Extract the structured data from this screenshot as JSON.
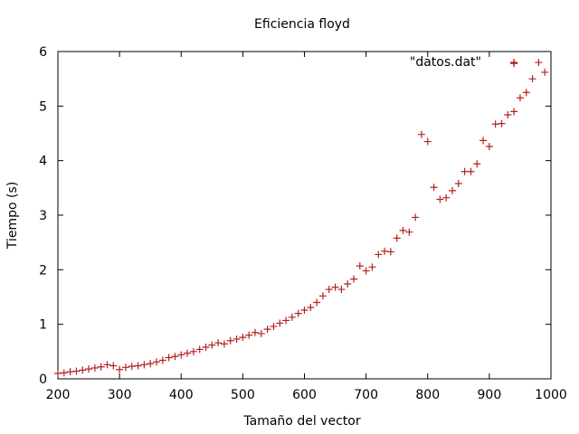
{
  "chart_data": {
    "type": "scatter",
    "title": "Eficiencia floyd",
    "xlabel": "Tamaño del vector",
    "ylabel": "Tiempo (s)",
    "xlim": [
      200,
      1000
    ],
    "ylim": [
      0,
      6
    ],
    "xticks": [
      200,
      300,
      400,
      500,
      600,
      700,
      800,
      900,
      1000
    ],
    "yticks": [
      0,
      1,
      2,
      3,
      4,
      5,
      6
    ],
    "grid": false,
    "legend_position": "top-right",
    "marker": "+",
    "series": [
      {
        "name": "\"datos.dat\"",
        "color": "#b22222",
        "points": [
          [
            200,
            0.1
          ],
          [
            210,
            0.11
          ],
          [
            220,
            0.13
          ],
          [
            230,
            0.14
          ],
          [
            240,
            0.16
          ],
          [
            250,
            0.18
          ],
          [
            260,
            0.2
          ],
          [
            270,
            0.22
          ],
          [
            280,
            0.26
          ],
          [
            290,
            0.24
          ],
          [
            300,
            0.17
          ],
          [
            310,
            0.21
          ],
          [
            320,
            0.23
          ],
          [
            330,
            0.24
          ],
          [
            340,
            0.26
          ],
          [
            350,
            0.28
          ],
          [
            360,
            0.31
          ],
          [
            370,
            0.34
          ],
          [
            380,
            0.39
          ],
          [
            390,
            0.41
          ],
          [
            400,
            0.44
          ],
          [
            410,
            0.47
          ],
          [
            420,
            0.5
          ],
          [
            430,
            0.54
          ],
          [
            440,
            0.58
          ],
          [
            450,
            0.62
          ],
          [
            460,
            0.66
          ],
          [
            470,
            0.64
          ],
          [
            480,
            0.7
          ],
          [
            490,
            0.73
          ],
          [
            500,
            0.76
          ],
          [
            510,
            0.8
          ],
          [
            520,
            0.85
          ],
          [
            530,
            0.83
          ],
          [
            540,
            0.91
          ],
          [
            550,
            0.96
          ],
          [
            560,
            1.02
          ],
          [
            570,
            1.07
          ],
          [
            580,
            1.13
          ],
          [
            590,
            1.2
          ],
          [
            600,
            1.26
          ],
          [
            610,
            1.31
          ],
          [
            620,
            1.4
          ],
          [
            630,
            1.52
          ],
          [
            640,
            1.64
          ],
          [
            650,
            1.68
          ],
          [
            660,
            1.64
          ],
          [
            670,
            1.74
          ],
          [
            680,
            1.83
          ],
          [
            690,
            2.07
          ],
          [
            700,
            1.98
          ],
          [
            710,
            2.05
          ],
          [
            720,
            2.28
          ],
          [
            730,
            2.34
          ],
          [
            740,
            2.33
          ],
          [
            750,
            2.58
          ],
          [
            760,
            2.72
          ],
          [
            770,
            2.69
          ],
          [
            780,
            2.96
          ],
          [
            790,
            4.48
          ],
          [
            800,
            4.35
          ],
          [
            810,
            3.51
          ],
          [
            820,
            3.29
          ],
          [
            830,
            3.32
          ],
          [
            840,
            3.45
          ],
          [
            850,
            3.58
          ],
          [
            860,
            3.8
          ],
          [
            870,
            3.8
          ],
          [
            880,
            3.94
          ],
          [
            890,
            4.37
          ],
          [
            900,
            4.26
          ],
          [
            910,
            4.67
          ],
          [
            920,
            4.68
          ],
          [
            930,
            4.84
          ],
          [
            940,
            4.9
          ],
          [
            950,
            5.15
          ],
          [
            960,
            5.25
          ],
          [
            970,
            5.5
          ],
          [
            980,
            5.8
          ],
          [
            990,
            5.62
          ],
          [
            940,
            5.78
          ]
        ]
      }
    ]
  }
}
